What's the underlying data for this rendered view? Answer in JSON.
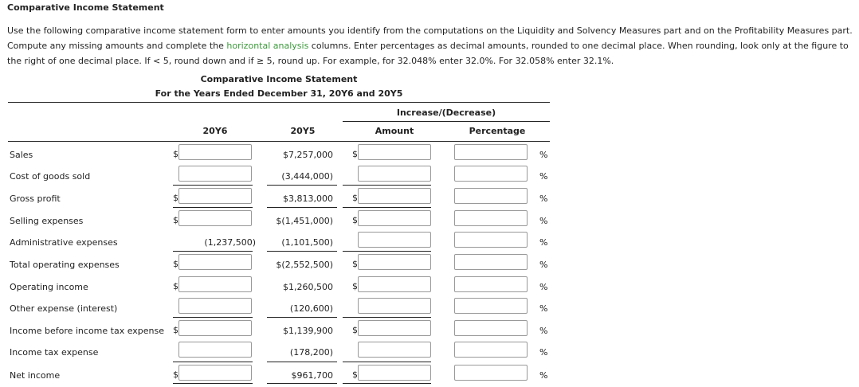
{
  "title": "Comparative Income Statement",
  "instructions": {
    "before": "Use the following comparative income statement form to enter amounts you identify from the computations on the Liquidity and Solvency Measures part and on the Profitability Measures part. Compute any missing amounts and complete the ",
    "link": "horizontal analysis",
    "after": " columns. Enter percentages as decimal amounts, rounded to one decimal place. When rounding, look only at the figure to the right of one decimal place. If < 5, round down and if ≥ 5, round up. For example, for 32.048% enter 32.0%. For 32.058% enter 32.1%."
  },
  "statement": {
    "title": "Comparative Income Statement",
    "subtitle": "For the Years Ended December 31, 20Y6 and 20Y5",
    "group_header": "Increase/(Decrease)",
    "columns": [
      "20Y6",
      "20Y5",
      "Amount",
      "Percentage"
    ]
  },
  "rows": [
    {
      "label": "Sales",
      "y6_dollar": "$",
      "y6": "",
      "y5": "$7,257,000",
      "amt_dollar": "$",
      "pct_sign": "%"
    },
    {
      "label": "Cost of goods sold",
      "y6_dollar": "",
      "y6": "",
      "y5": "(3,444,000)",
      "amt_dollar": "",
      "pct_sign": "%"
    },
    {
      "label": "Gross profit",
      "y6_dollar": "$",
      "y6": "",
      "y5": "$3,813,000",
      "amt_dollar": "$",
      "pct_sign": "%"
    },
    {
      "label": "Selling expenses",
      "y6_dollar": "$",
      "y6": "",
      "y5": "$(1,451,000)",
      "amt_dollar": "$",
      "pct_sign": "%"
    },
    {
      "label": "Administrative expenses",
      "y6_dollar": "",
      "y6_text": "(1,237,500)",
      "y5": "(1,101,500)",
      "amt_dollar": "",
      "pct_sign": "%"
    },
    {
      "label": "Total operating expenses",
      "y6_dollar": "$",
      "y6": "",
      "y5": "$(2,552,500)",
      "amt_dollar": "$",
      "pct_sign": "%"
    },
    {
      "label": "Operating income",
      "y6_dollar": "$",
      "y6": "",
      "y5": "$1,260,500",
      "amt_dollar": "$",
      "pct_sign": "%"
    },
    {
      "label": "Other expense (interest)",
      "y6_dollar": "",
      "y6": "",
      "y5": "(120,600)",
      "amt_dollar": "",
      "pct_sign": "%"
    },
    {
      "label": "Income before income tax expense",
      "y6_dollar": "$",
      "y6": "",
      "y5": "$1,139,900",
      "amt_dollar": "$",
      "pct_sign": "%"
    },
    {
      "label": "Income tax expense",
      "y6_dollar": "",
      "y6": "",
      "y5": "(178,200)",
      "amt_dollar": "",
      "pct_sign": "%"
    },
    {
      "label": "Net income",
      "y6_dollar": "$",
      "y6": "",
      "y5": "$961,700",
      "amt_dollar": "$",
      "pct_sign": "%"
    }
  ]
}
